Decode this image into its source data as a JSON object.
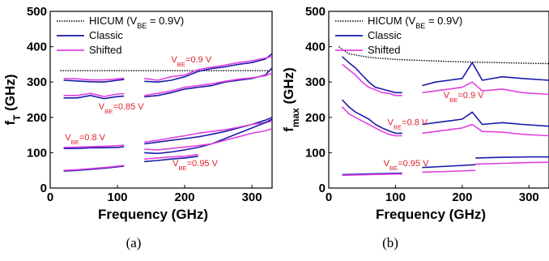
{
  "chart_data": [
    {
      "type": "line",
      "caption": "(a)",
      "xlabel": "Frequency (GHz)",
      "ylabel": {
        "main": "f",
        "sub": "T",
        "tail": " (GHz)"
      },
      "xlim": [
        0,
        330
      ],
      "ylim": [
        0,
        500
      ],
      "xticks": [
        0,
        100,
        200,
        300
      ],
      "yticks": [
        0,
        100,
        200,
        300,
        400,
        500
      ],
      "grid": false,
      "legend": {
        "position": "top-left",
        "entries": [
          {
            "main": "HICUM (V",
            "sub": "BE",
            "tail": " = 0.9V)",
            "style": "dotted",
            "color": "#000000"
          },
          {
            "main": "Classic",
            "sub": "",
            "tail": "",
            "style": "solid",
            "color": "#1a1aa8"
          },
          {
            "main": "Shifted",
            "sub": "",
            "tail": "",
            "style": "solid",
            "color": "#e040e0"
          }
        ]
      },
      "annotations": [
        {
          "main": "V",
          "sub": "BE",
          "tail": "=0.9 V",
          "at": [
            180,
            355
          ]
        },
        {
          "main": "V",
          "sub": "BE",
          "tail": "=0.85 V",
          "at": [
            72,
            222
          ]
        },
        {
          "main": "V",
          "sub": "BE",
          "tail": "=0.8 V",
          "at": [
            22,
            135
          ]
        },
        {
          "main": "V",
          "sub": "BE",
          "tail": "=0.95 V",
          "at": [
            182,
            62
          ]
        }
      ],
      "series": [
        {
          "line": "hicum",
          "color": "#000000",
          "dash": "dotted",
          "x": [
            15,
            330
          ],
          "y": [
            332,
            332
          ]
        },
        {
          "line": "classic",
          "color": "#1a1aa8",
          "x": [
            20,
            40,
            60,
            80,
            100,
            110
          ],
          "y": [
            305,
            303,
            301,
            300,
            305,
            307
          ]
        },
        {
          "line": "shifted",
          "color": "#e040e0",
          "x": [
            20,
            40,
            60,
            80,
            100,
            110
          ],
          "y": [
            310,
            309,
            306,
            306,
            309,
            311
          ]
        },
        {
          "line": "classic",
          "color": "#1a1aa8",
          "x": [
            20,
            40,
            60,
            80,
            100,
            110
          ],
          "y": [
            255,
            255,
            262,
            253,
            259,
            260
          ]
        },
        {
          "line": "shifted",
          "color": "#e040e0",
          "x": [
            20,
            40,
            60,
            80,
            100,
            110
          ],
          "y": [
            262,
            262,
            268,
            259,
            266,
            267
          ]
        },
        {
          "line": "classic",
          "color": "#1a1aa8",
          "x": [
            140,
            160,
            180,
            200,
            220
          ],
          "y": [
            302,
            300,
            305,
            315,
            330
          ]
        },
        {
          "line": "shifted",
          "color": "#e040e0",
          "x": [
            140,
            160,
            180,
            200,
            220
          ],
          "y": [
            310,
            305,
            315,
            320,
            335
          ]
        },
        {
          "line": "classic",
          "color": "#1a1aa8",
          "x": [
            140,
            160,
            180,
            200,
            220
          ],
          "y": [
            258,
            262,
            270,
            280,
            285
          ]
        },
        {
          "line": "shifted",
          "color": "#e040e0",
          "x": [
            140,
            160,
            180,
            200,
            220
          ],
          "y": [
            262,
            268,
            275,
            285,
            290
          ]
        },
        {
          "line": "classic",
          "color": "#1a1aa8",
          "x": [
            220,
            240,
            260,
            280,
            300,
            320,
            330
          ],
          "y": [
            330,
            338,
            343,
            350,
            355,
            365,
            380
          ]
        },
        {
          "line": "shifted",
          "color": "#e040e0",
          "x": [
            220,
            240,
            260,
            280,
            300,
            320,
            330
          ],
          "y": [
            335,
            342,
            348,
            355,
            360,
            368,
            372
          ]
        },
        {
          "line": "classic",
          "color": "#1a1aa8",
          "x": [
            220,
            240,
            260,
            280,
            300,
            320,
            330
          ],
          "y": [
            285,
            290,
            300,
            305,
            310,
            320,
            340
          ]
        },
        {
          "line": "shifted",
          "color": "#e040e0",
          "x": [
            220,
            240,
            260,
            280,
            300,
            320,
            330
          ],
          "y": [
            290,
            295,
            302,
            308,
            312,
            318,
            325
          ]
        },
        {
          "line": "classic",
          "color": "#1a1aa8",
          "x": [
            20,
            40,
            60,
            80,
            100,
            110
          ],
          "y": [
            112,
            112,
            114,
            114,
            115,
            117
          ]
        },
        {
          "line": "shifted",
          "color": "#e040e0",
          "x": [
            20,
            40,
            60,
            80,
            100,
            110
          ],
          "y": [
            115,
            116,
            117,
            118,
            120,
            121
          ]
        },
        {
          "line": "classic",
          "color": "#1a1aa8",
          "x": [
            20,
            40,
            60,
            80,
            100,
            110
          ],
          "y": [
            48,
            50,
            53,
            56,
            60,
            62
          ]
        },
        {
          "line": "shifted",
          "color": "#e040e0",
          "x": [
            20,
            40,
            60,
            80,
            100,
            110
          ],
          "y": [
            50,
            52,
            55,
            58,
            62,
            64
          ]
        },
        {
          "line": "classic",
          "color": "#1a1aa8",
          "x": [
            140,
            160,
            180,
            200,
            220
          ],
          "y": [
            125,
            130,
            135,
            140,
            145
          ]
        },
        {
          "line": "shifted",
          "color": "#e040e0",
          "x": [
            140,
            160,
            180,
            200,
            220
          ],
          "y": [
            130,
            135,
            142,
            148,
            155
          ]
        },
        {
          "line": "classic",
          "color": "#1a1aa8",
          "x": [
            140,
            160,
            180,
            200,
            220
          ],
          "y": [
            100,
            98,
            102,
            108,
            115
          ]
        },
        {
          "line": "shifted",
          "color": "#e040e0",
          "x": [
            140,
            160,
            180,
            200,
            220
          ],
          "y": [
            110,
            108,
            112,
            116,
            120
          ]
        },
        {
          "line": "classic",
          "color": "#1a1aa8",
          "x": [
            140,
            160,
            180,
            200,
            220
          ],
          "y": [
            75,
            78,
            82,
            85,
            90
          ]
        },
        {
          "line": "shifted",
          "color": "#e040e0",
          "x": [
            140,
            160,
            180,
            200,
            220
          ],
          "y": [
            82,
            85,
            88,
            90,
            95
          ]
        },
        {
          "line": "classic",
          "color": "#1a1aa8",
          "x": [
            220,
            240,
            260,
            280,
            300,
            320,
            330
          ],
          "y": [
            145,
            152,
            160,
            170,
            180,
            192,
            200
          ]
        },
        {
          "line": "shifted",
          "color": "#e040e0",
          "x": [
            220,
            240,
            260,
            280,
            300,
            320,
            330
          ],
          "y": [
            155,
            160,
            165,
            172,
            180,
            185,
            190
          ]
        },
        {
          "line": "classic",
          "color": "#1a1aa8",
          "x": [
            220,
            240,
            260,
            280,
            300,
            320,
            330
          ],
          "y": [
            115,
            125,
            140,
            155,
            170,
            185,
            195
          ]
        },
        {
          "line": "shifted",
          "color": "#e040e0",
          "x": [
            220,
            240,
            260,
            280,
            300,
            320,
            330
          ],
          "y": [
            120,
            125,
            135,
            145,
            155,
            162,
            168
          ]
        }
      ]
    },
    {
      "type": "line",
      "caption": "(b)",
      "xlabel": "Frequency (GHz)",
      "ylabel": {
        "main": "f",
        "sub": "max",
        "tail": " (GHz)"
      },
      "xlim": [
        0,
        330
      ],
      "ylim": [
        0,
        500
      ],
      "xticks": [
        0,
        100,
        200,
        300
      ],
      "yticks": [
        0,
        100,
        200,
        300,
        400,
        500
      ],
      "grid": false,
      "legend": {
        "position": "top-left",
        "entries": [
          {
            "main": "HICUM (V",
            "sub": "BE",
            "tail": " = 0.9V)",
            "style": "dotted",
            "color": "#000000"
          },
          {
            "main": "Classic",
            "sub": "",
            "tail": "",
            "style": "solid",
            "color": "#1a1aa8"
          },
          {
            "main": "Shifted",
            "sub": "",
            "tail": "",
            "style": "solid",
            "color": "#e040e0"
          }
        ]
      },
      "annotations": [
        {
          "main": "V",
          "sub": "BE",
          "tail": "=0.9 V",
          "at": [
            172,
            255
          ]
        },
        {
          "main": "V",
          "sub": "BE",
          "tail": "=0.8 V",
          "at": [
            88,
            178
          ]
        },
        {
          "main": "V",
          "sub": "BE",
          "tail": "=0.95 V",
          "at": [
            82,
            62
          ]
        }
      ],
      "series": [
        {
          "line": "hicum",
          "color": "#000000",
          "dash": "dotted",
          "x": [
            15,
            30,
            60,
            100,
            150,
            200,
            250,
            300,
            330
          ],
          "y": [
            400,
            380,
            370,
            364,
            360,
            357,
            355,
            353,
            352
          ]
        },
        {
          "line": "classic",
          "color": "#1a1aa8",
          "x": [
            20,
            30,
            40,
            50,
            60,
            70,
            80,
            90,
            100,
            110
          ],
          "y": [
            372,
            355,
            340,
            320,
            300,
            285,
            280,
            275,
            270,
            270
          ]
        },
        {
          "line": "shifted",
          "color": "#e040e0",
          "x": [
            20,
            30,
            40,
            50,
            60,
            70,
            80,
            90,
            100,
            110
          ],
          "y": [
            350,
            335,
            320,
            300,
            285,
            278,
            270,
            268,
            262,
            262
          ]
        },
        {
          "line": "classic",
          "color": "#1a1aa8",
          "x": [
            20,
            30,
            40,
            50,
            60,
            70,
            80,
            90,
            100,
            110
          ],
          "y": [
            250,
            230,
            215,
            205,
            195,
            180,
            170,
            162,
            155,
            155
          ]
        },
        {
          "line": "shifted",
          "color": "#e040e0",
          "x": [
            20,
            30,
            40,
            50,
            60,
            70,
            80,
            90,
            100,
            110
          ],
          "y": [
            230,
            210,
            200,
            190,
            180,
            170,
            160,
            152,
            148,
            148
          ]
        },
        {
          "line": "classic",
          "color": "#1a1aa8",
          "x": [
            140,
            160,
            180,
            200,
            215,
            230,
            260,
            290,
            330
          ],
          "y": [
            290,
            300,
            305,
            310,
            355,
            305,
            315,
            310,
            305
          ]
        },
        {
          "line": "shifted",
          "color": "#e040e0",
          "x": [
            140,
            160,
            180,
            200,
            215,
            230,
            260,
            290,
            330
          ],
          "y": [
            270,
            275,
            280,
            285,
            300,
            275,
            280,
            270,
            265
          ]
        },
        {
          "line": "classic",
          "color": "#1a1aa8",
          "x": [
            140,
            160,
            180,
            200,
            215,
            230,
            260,
            290,
            330
          ],
          "y": [
            180,
            185,
            190,
            195,
            215,
            180,
            185,
            180,
            175
          ]
        },
        {
          "line": "shifted",
          "color": "#e040e0",
          "x": [
            140,
            160,
            180,
            200,
            215,
            230,
            260,
            290,
            330
          ],
          "y": [
            155,
            160,
            165,
            170,
            180,
            160,
            158,
            152,
            148
          ]
        },
        {
          "line": "classic",
          "color": "#1a1aa8",
          "x": [
            20,
            60,
            110
          ],
          "y": [
            38,
            40,
            42
          ]
        },
        {
          "line": "shifted",
          "color": "#e040e0",
          "x": [
            20,
            60,
            110
          ],
          "y": [
            36,
            38,
            40
          ]
        },
        {
          "line": "classic",
          "color": "#1a1aa8",
          "x": [
            140,
            180,
            220
          ],
          "y": [
            58,
            62,
            66
          ]
        },
        {
          "line": "shifted",
          "color": "#e040e0",
          "x": [
            140,
            180,
            220
          ],
          "y": [
            45,
            47,
            50
          ]
        },
        {
          "line": "classic",
          "color": "#1a1aa8",
          "x": [
            220,
            260,
            300,
            330
          ],
          "y": [
            85,
            87,
            88,
            88
          ]
        },
        {
          "line": "shifted",
          "color": "#e040e0",
          "x": [
            220,
            260,
            300,
            330
          ],
          "y": [
            68,
            70,
            72,
            73
          ]
        }
      ]
    }
  ]
}
